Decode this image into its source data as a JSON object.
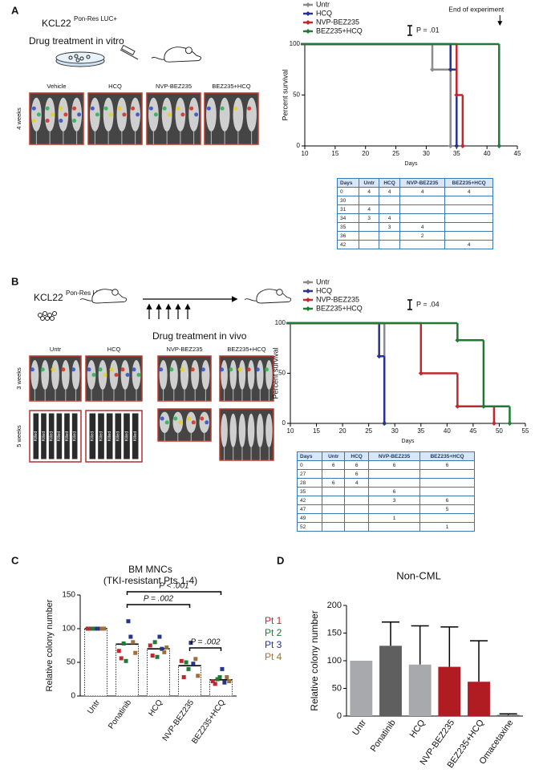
{
  "panel_labels": [
    "A",
    "B",
    "C",
    "D"
  ],
  "diagram_a": {
    "cell_line": "KCL22",
    "cell_line_sup": "Pon-Res LUC+",
    "treatment": "Drug treatment  in vitro"
  },
  "imaging_a": {
    "timepoint": "4 weeks",
    "groups": [
      "Vehicle",
      "HCQ",
      "NVP-BEZ235",
      "BEZ235+HCQ"
    ]
  },
  "diagram_b": {
    "cell_line": "KCL22",
    "cell_line_sup": "Pon-Res LUC+",
    "treatment": "Drug treatment  in vivo"
  },
  "imaging_b": {
    "timepoints": [
      "3 weeks",
      "5 weeks"
    ],
    "groups": [
      "Untr",
      "HCQ",
      "NVP-BEZ235",
      "BEZ235+HCQ"
    ],
    "killed_label": "Killed"
  },
  "tables": [
    {
      "columns": [
        "Days",
        "Untr",
        "HCQ",
        "NVP-BEZ235",
        "BEZ235+HCQ"
      ],
      "rows": [
        [
          0,
          4,
          4,
          4,
          4
        ],
        [
          30,
          null,
          null,
          null,
          null
        ],
        [
          31,
          4,
          null,
          null,
          null
        ],
        [
          34,
          3,
          4,
          null,
          null
        ],
        [
          35,
          null,
          3,
          4,
          null
        ],
        [
          36,
          null,
          null,
          2,
          null
        ],
        [
          42,
          null,
          null,
          null,
          4
        ]
      ]
    },
    {
      "columns": [
        "Days",
        "Untr",
        "HCQ",
        "NVP-BEZ235",
        "BEZ235+HCQ"
      ],
      "rows": [
        [
          0,
          6,
          6,
          6,
          6
        ],
        [
          27,
          null,
          6,
          null,
          null
        ],
        [
          28,
          6,
          4,
          null,
          null
        ],
        [
          35,
          null,
          null,
          6,
          null
        ],
        [
          42,
          null,
          null,
          3,
          6
        ],
        [
          47,
          null,
          null,
          null,
          5
        ],
        [
          49,
          null,
          null,
          1,
          null
        ],
        [
          52,
          null,
          null,
          null,
          1
        ]
      ]
    }
  ],
  "chart_data": [
    {
      "type": "survival",
      "x_label": "Days",
      "y_label": "Percent survival",
      "xlim": [
        10,
        45
      ],
      "xticks": [
        10,
        15,
        20,
        25,
        30,
        35,
        40,
        45
      ],
      "ylim": [
        0,
        100
      ],
      "yticks": [
        0,
        50,
        100
      ],
      "series": [
        {
          "name": "Untr",
          "color": "#8c8c8c",
          "x": [
            0,
            31,
            34
          ],
          "values": [
            100,
            75,
            0
          ]
        },
        {
          "name": "HCQ",
          "color": "#27348b",
          "x": [
            0,
            34,
            35
          ],
          "values": [
            100,
            75,
            0
          ]
        },
        {
          "name": "NVP-BEZ235",
          "color": "#c1272d",
          "x": [
            0,
            35,
            36
          ],
          "values": [
            100,
            50,
            0
          ]
        },
        {
          "name": "BEZ235+HCQ",
          "color": "#1e7b34",
          "x": [
            0,
            42
          ],
          "values": [
            100,
            0
          ]
        }
      ],
      "annotations": [
        "P = .01",
        "End of experiment"
      ]
    },
    {
      "type": "survival",
      "x_label": "Days",
      "y_label": "Percent survival",
      "xlim": [
        10,
        55
      ],
      "xticks": [
        10,
        15,
        20,
        25,
        30,
        35,
        40,
        45,
        50,
        55
      ],
      "ylim": [
        0,
        100
      ],
      "yticks": [
        0,
        50,
        100
      ],
      "series": [
        {
          "name": "Untr",
          "color": "#8c8c8c",
          "x": [
            0,
            28
          ],
          "values": [
            100,
            0
          ]
        },
        {
          "name": "HCQ",
          "color": "#27348b",
          "x": [
            0,
            27,
            28
          ],
          "values": [
            100,
            67,
            0
          ]
        },
        {
          "name": "NVP-BEZ235",
          "color": "#c1272d",
          "x": [
            0,
            35,
            42,
            49
          ],
          "values": [
            100,
            50,
            17,
            0
          ]
        },
        {
          "name": "BEZ235+HCQ",
          "color": "#1e7b34",
          "x": [
            0,
            42,
            47,
            52
          ],
          "values": [
            100,
            83,
            17,
            0
          ]
        }
      ],
      "annotations": [
        "P = .04"
      ]
    },
    {
      "type": "dotbar",
      "title": "BM MNCs",
      "subtitle": "(TKI-resistant Pts 1-4)",
      "y_label": "Relative colony number",
      "categories": [
        "Untr",
        "Ponatinib",
        "HCQ",
        "NVP-BEZ235",
        "BEZ235+HCQ"
      ],
      "ylim": [
        0,
        150
      ],
      "yticks": [
        0,
        50,
        100,
        150
      ],
      "bar_values": [
        100,
        77,
        70,
        45,
        24
      ],
      "series": [
        {
          "name": "Pt 1",
          "color": "#c1272d",
          "values": [
            [
              100,
              100
            ],
            [
              67,
              56
            ],
            [
              75,
              60
            ],
            [
              52,
              28
            ],
            [
              22,
              18
            ]
          ]
        },
        {
          "name": "Pt 2",
          "color": "#1e7b34",
          "values": [
            [
              100,
              100
            ],
            [
              78,
              52
            ],
            [
              80,
              58
            ],
            [
              50,
              40
            ],
            [
              25,
              28
            ]
          ]
        },
        {
          "name": "Pt 3",
          "color": "#27348b",
          "values": [
            [
              100,
              100
            ],
            [
              111,
              88
            ],
            [
              88,
              70
            ],
            [
              79,
              48
            ],
            [
              40,
              20
            ]
          ]
        },
        {
          "name": "Pt 4",
          "color": "#a0703a",
          "values": [
            [
              100,
              100
            ],
            [
              80,
              64
            ],
            [
              65,
              72
            ],
            [
              55,
              30
            ],
            [
              28,
              22
            ]
          ]
        }
      ],
      "annotations": [
        "P < .001",
        "P = .002",
        "P = .002"
      ]
    },
    {
      "type": "bar",
      "title": "Non-CML",
      "y_label": "Relative colony number",
      "categories": [
        "Untr",
        "Ponatinib",
        "HCQ",
        "NVP-BEZ235",
        "BEZ235+HCQ",
        "Omacetaxine"
      ],
      "ylim": [
        0,
        200
      ],
      "yticks": [
        0,
        50,
        100,
        150,
        200
      ],
      "values": [
        100,
        127,
        93,
        89,
        62,
        2
      ],
      "errors": [
        null,
        43,
        70,
        72,
        74,
        2
      ],
      "colors": [
        "#a7a9ac",
        "#5f5f5f",
        "#a7a9ac",
        "#b01c22",
        "#b01c22",
        "#5f5f5f"
      ]
    }
  ]
}
